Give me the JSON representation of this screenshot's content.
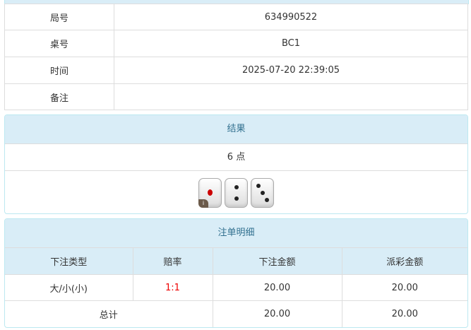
{
  "info": [
    {
      "label": "局号",
      "value": "634990522"
    },
    {
      "label": "桌号",
      "value": "BC1"
    },
    {
      "label": "时间",
      "value": "2025-07-20 22:39:05"
    },
    {
      "label": "备注",
      "value": ""
    }
  ],
  "result": {
    "title": "结果",
    "points": "6 点",
    "dice": [
      1,
      2,
      3
    ],
    "info_badge": "i"
  },
  "bets": {
    "title": "注单明细",
    "headers": [
      "下注类型",
      "赔率",
      "下注金额",
      "派彩金额"
    ],
    "rows": [
      {
        "type": "大/小(小)",
        "odds": "1:1",
        "amount": "20.00",
        "payout": "20.00"
      }
    ],
    "total": {
      "label": "总计",
      "amount": "20.00",
      "payout": "20.00"
    },
    "odds_color": "#e00000"
  }
}
